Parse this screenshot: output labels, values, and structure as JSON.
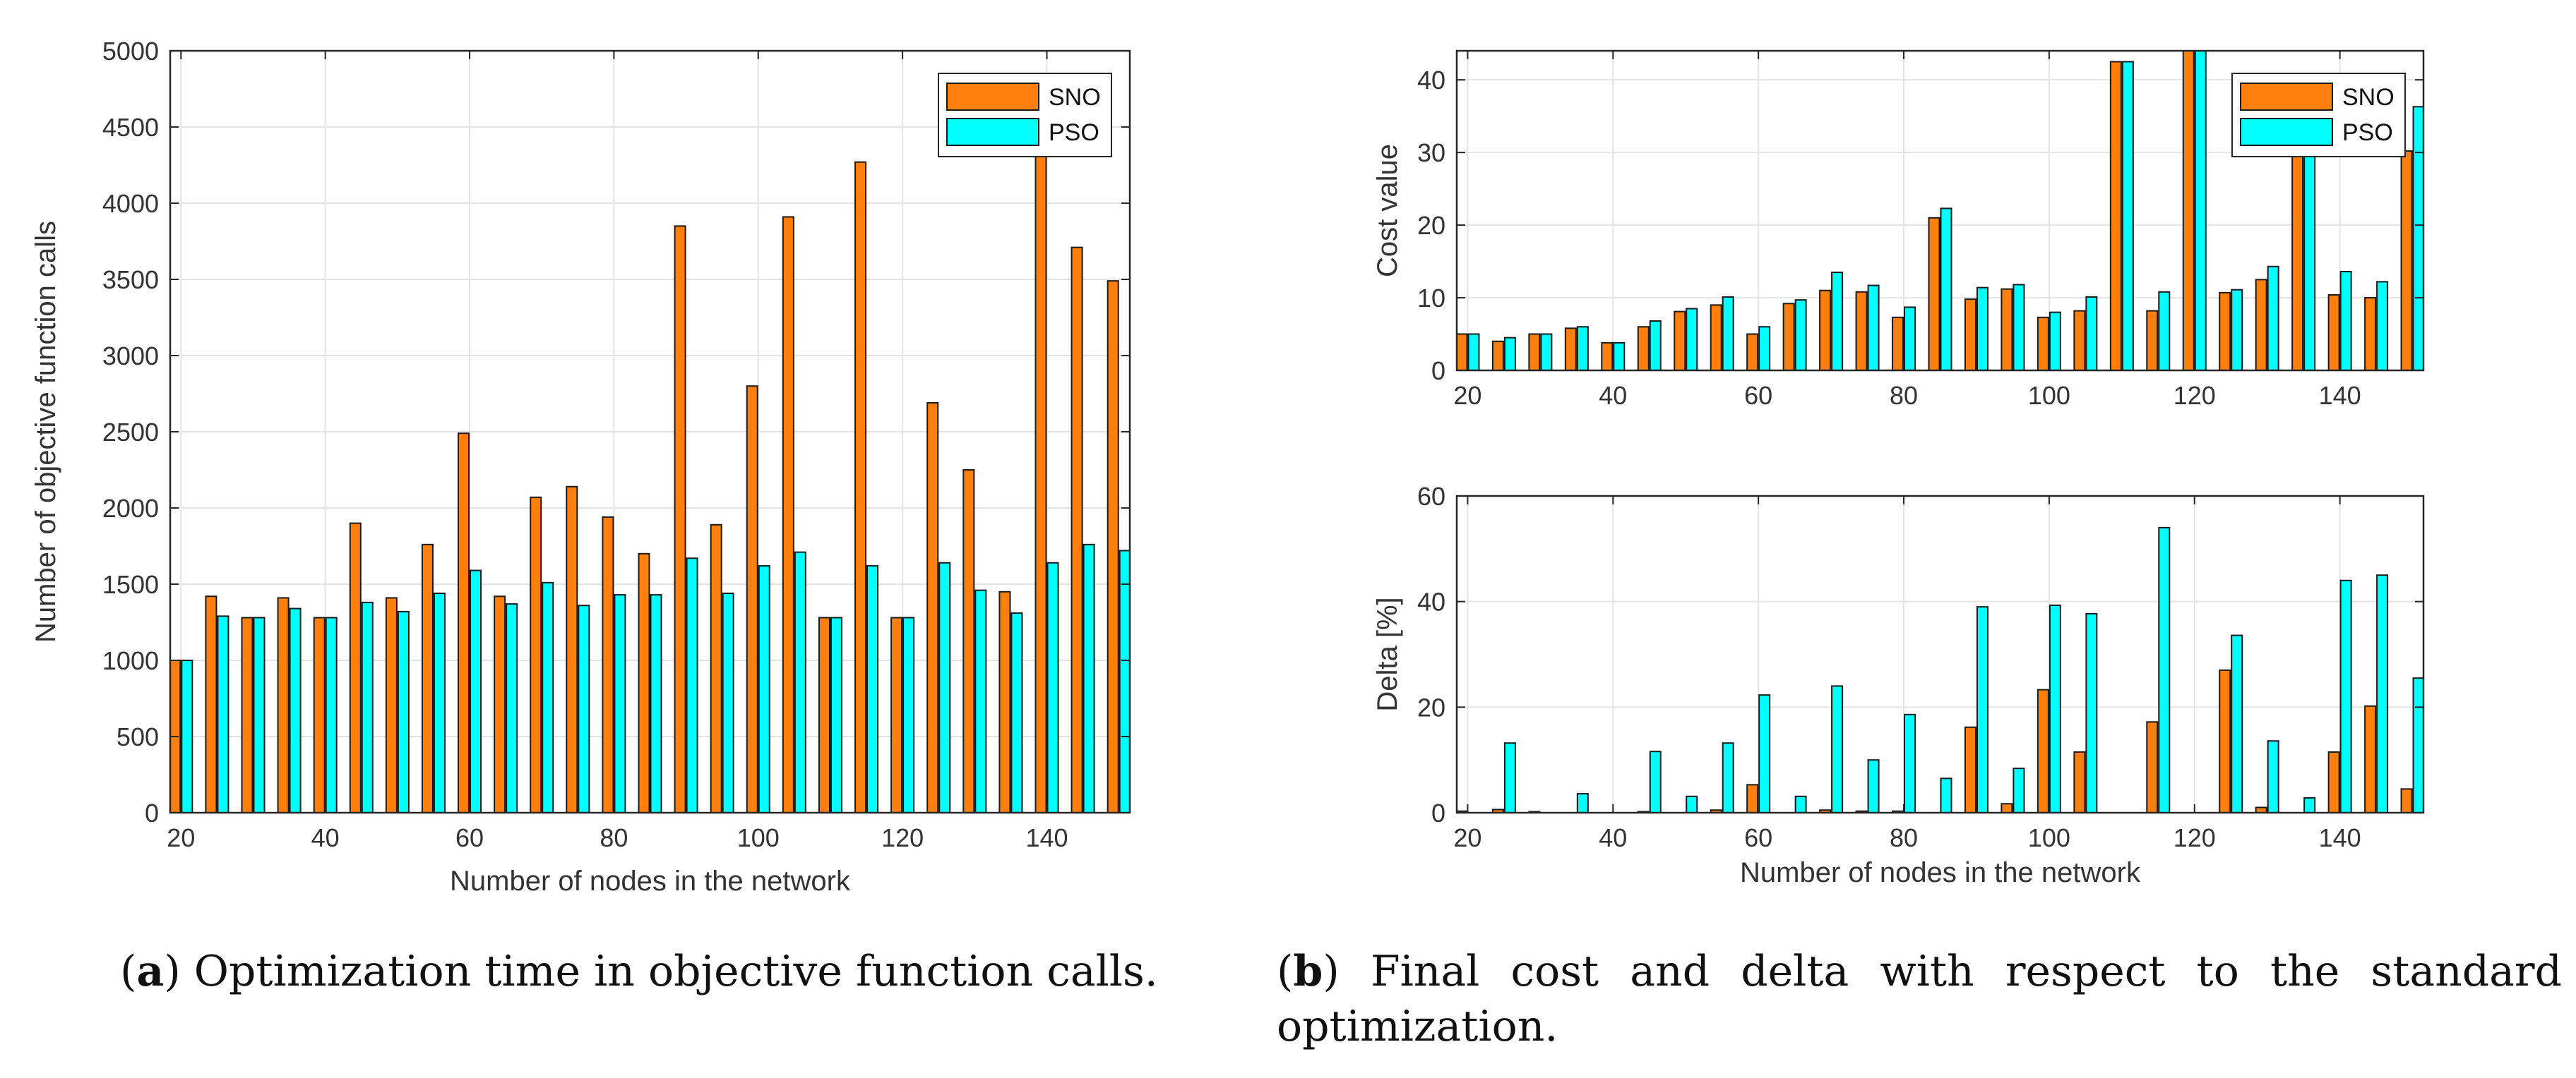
{
  "colors": {
    "sno": "#ff7f0e",
    "pso": "#00ffff",
    "grid": "#e3e3e3",
    "axis": "#262626"
  },
  "captions": {
    "a_label": "a",
    "a_text": "Optimization time in objective function calls.",
    "b_label": "b",
    "b_text": "Final cost and delta with respect to the standard optimization."
  },
  "chart_data": [
    {
      "id": "chart-a",
      "type": "bar",
      "title": "",
      "xlabel": "Number of nodes in the network",
      "ylabel": "Number of objective function calls",
      "x": [
        20,
        25,
        30,
        35,
        40,
        45,
        50,
        55,
        60,
        65,
        70,
        75,
        80,
        85,
        90,
        95,
        100,
        105,
        110,
        115,
        120,
        125,
        130,
        135,
        140,
        145,
        150
      ],
      "xlim": [
        18.5,
        151.5
      ],
      "xticks": [
        20,
        40,
        60,
        80,
        100,
        120,
        140
      ],
      "ylim": [
        0,
        5000
      ],
      "yticks": [
        0,
        500,
        1000,
        1500,
        2000,
        2500,
        3000,
        3500,
        4000,
        4500,
        5000
      ],
      "grid": true,
      "legend_position": "top-right",
      "series": [
        {
          "name": "SNO",
          "values": [
            1000,
            1420,
            1280,
            1410,
            1280,
            1900,
            1410,
            1760,
            2490,
            1420,
            2070,
            2140,
            1940,
            1700,
            3850,
            1890,
            2800,
            3910,
            1280,
            4270,
            1280,
            2690,
            2250,
            1450,
            4450,
            3710,
            3490
          ]
        },
        {
          "name": "PSO",
          "values": [
            1000,
            1290,
            1280,
            1340,
            1280,
            1380,
            1320,
            1440,
            1590,
            1370,
            1510,
            1360,
            1430,
            1430,
            1670,
            1440,
            1620,
            1710,
            1280,
            1620,
            1280,
            1640,
            1460,
            1310,
            1640,
            1760,
            1720
          ]
        }
      ]
    },
    {
      "id": "chart-b-top",
      "type": "bar",
      "title": "",
      "xlabel": "",
      "ylabel": "Cost value",
      "x": [
        20,
        25,
        30,
        35,
        40,
        45,
        50,
        55,
        60,
        65,
        70,
        75,
        80,
        85,
        90,
        95,
        100,
        105,
        110,
        115,
        120,
        125,
        130,
        135,
        140,
        145,
        150
      ],
      "xlim": [
        18.5,
        151.5
      ],
      "xticks": [
        20,
        40,
        60,
        80,
        100,
        120,
        140
      ],
      "ylim": [
        0,
        44
      ],
      "yticks": [
        0,
        10,
        20,
        30,
        40
      ],
      "grid": true,
      "legend_position": "top-right",
      "series": [
        {
          "name": "SNO",
          "values": [
            5,
            4,
            5,
            5.8,
            3.8,
            6,
            8.1,
            9,
            5,
            9.2,
            11,
            10.8,
            7.3,
            21,
            9.8,
            11.2,
            7.3,
            8.2,
            42.5,
            8.2,
            44,
            10.7,
            12.5,
            33,
            10.4,
            10,
            30.2
          ]
        },
        {
          "name": "PSO",
          "values": [
            5,
            4.5,
            5,
            6,
            3.8,
            6.8,
            8.5,
            10.1,
            6,
            9.7,
            13.5,
            11.7,
            8.7,
            22.3,
            11.4,
            11.8,
            8,
            10.1,
            42.5,
            10.8,
            44,
            11.1,
            14.3,
            33,
            13.6,
            12.2,
            36.3
          ]
        }
      ]
    },
    {
      "id": "chart-b-bottom",
      "type": "bar",
      "title": "",
      "xlabel": "Number of nodes in the network",
      "ylabel": "Delta [%]",
      "x": [
        20,
        25,
        30,
        35,
        40,
        45,
        50,
        55,
        60,
        65,
        70,
        75,
        80,
        85,
        90,
        95,
        100,
        105,
        110,
        115,
        120,
        125,
        130,
        135,
        140,
        145,
        150
      ],
      "xlim": [
        18.5,
        151.5
      ],
      "xticks": [
        20,
        40,
        60,
        80,
        100,
        120,
        140
      ],
      "ylim": [
        0,
        60
      ],
      "yticks": [
        0,
        20,
        40,
        60
      ],
      "grid": true,
      "legend_position": "none",
      "series": [
        {
          "name": "SNO",
          "values": [
            0.3,
            0.6,
            0.2,
            0,
            0,
            0.2,
            0,
            0.5,
            5.3,
            0,
            0.5,
            0.3,
            0.3,
            0,
            16.2,
            1.7,
            23.3,
            11.5,
            0,
            17.2,
            0,
            27,
            1,
            0,
            11.5,
            20.2,
            4.5
          ]
        },
        {
          "name": "PSO",
          "values": [
            0,
            13.2,
            0,
            3.6,
            0,
            11.6,
            3.1,
            13.2,
            22.3,
            3.1,
            24,
            10,
            18.6,
            6.5,
            39,
            8.4,
            39.3,
            37.7,
            0,
            54,
            0,
            33.6,
            13.6,
            2.8,
            44,
            45,
            25.5
          ]
        }
      ]
    }
  ]
}
